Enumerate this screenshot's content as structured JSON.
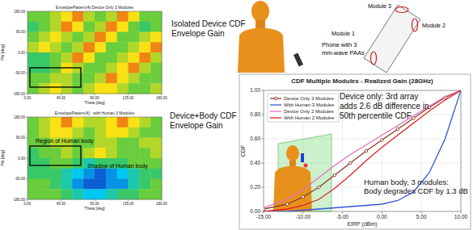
{
  "chart_data": [
    {
      "type": "heatmap",
      "title": "EnvelopePattern(4) Device Only 3 Modules",
      "x_label": "Theta [deg]",
      "y_label": "Phi [deg]",
      "xlim": [
        0,
        180
      ],
      "ylim": [
        -180,
        180
      ],
      "xticks": [
        {
          "value": 0,
          "label": "0.00"
        },
        {
          "value": 45,
          "label": "45.00"
        },
        {
          "value": 90,
          "label": "90.00"
        },
        {
          "value": 135,
          "label": "135.00"
        },
        {
          "value": 180,
          "label": "180.00"
        }
      ],
      "yticks": [
        {
          "value": -180,
          "label": "-180.00"
        },
        {
          "value": -90,
          "label": "-90.00"
        },
        {
          "value": 0,
          "label": "0.00"
        },
        {
          "value": 90,
          "label": "90.00"
        },
        {
          "value": 180,
          "label": "180.00"
        }
      ],
      "zlim": [
        0,
        10
      ],
      "cells": [
        [
          6,
          6,
          7,
          8,
          9,
          7,
          6,
          7,
          9,
          8,
          6,
          6
        ],
        [
          5,
          6,
          7,
          9,
          8,
          6,
          7,
          9,
          8,
          6,
          5,
          6
        ],
        [
          6,
          7,
          8,
          7,
          6,
          7,
          9,
          8,
          6,
          6,
          7,
          8
        ],
        [
          7,
          8,
          7,
          6,
          7,
          9,
          8,
          6,
          6,
          7,
          8,
          9
        ],
        [
          5,
          5,
          6,
          7,
          9,
          8,
          6,
          6,
          7,
          8,
          9,
          7
        ],
        [
          5,
          5,
          6,
          8,
          7,
          6,
          6,
          7,
          8,
          9,
          7,
          6
        ],
        [
          6,
          6,
          7,
          7,
          6,
          6,
          7,
          9,
          8,
          7,
          6,
          6
        ],
        [
          6,
          7,
          8,
          7,
          6,
          7,
          8,
          8,
          7,
          6,
          6,
          7
        ]
      ],
      "annotations": [
        [
          "Isolated Device CDF",
          "Envelope Gain"
        ]
      ]
    },
    {
      "type": "heatmap",
      "title": "EnvelopePattern(4) - with Human 3 Modules",
      "x_label": "Theta [deg]",
      "y_label": "Phi [deg]",
      "xlim": [
        0,
        180
      ],
      "ylim": [
        -180,
        180
      ],
      "xticks": [
        {
          "value": 0,
          "label": "0.00"
        },
        {
          "value": 45,
          "label": "45.00"
        },
        {
          "value": 90,
          "label": "90.00"
        },
        {
          "value": 135,
          "label": "135.00"
        },
        {
          "value": 180,
          "label": "180.00"
        }
      ],
      "yticks": [
        {
          "value": -180,
          "label": "-180.00"
        },
        {
          "value": -90,
          "label": "-90.00"
        },
        {
          "value": 0,
          "label": "0.00"
        },
        {
          "value": 90,
          "label": "90.00"
        },
        {
          "value": 180,
          "label": "180.00"
        }
      ],
      "zlim": [
        0,
        10
      ],
      "cells": [
        [
          6,
          7,
          8,
          9,
          8,
          7,
          7,
          8,
          9,
          8,
          7,
          6
        ],
        [
          6,
          7,
          8,
          8,
          7,
          6,
          7,
          8,
          8,
          7,
          6,
          6
        ],
        [
          6,
          6,
          7,
          7,
          6,
          6,
          7,
          7,
          6,
          6,
          7,
          7
        ],
        [
          5,
          6,
          6,
          7,
          6,
          7,
          8,
          7,
          6,
          6,
          6,
          7
        ],
        [
          5,
          5,
          6,
          6,
          5,
          4,
          5,
          5,
          5,
          6,
          6,
          6
        ],
        [
          5,
          5,
          5,
          4,
          3,
          2,
          1,
          2,
          3,
          4,
          5,
          5
        ],
        [
          6,
          6,
          5,
          4,
          2,
          1,
          1,
          2,
          2,
          4,
          5,
          6
        ],
        [
          6,
          6,
          6,
          5,
          4,
          3,
          3,
          4,
          5,
          5,
          6,
          6
        ]
      ],
      "annotations": [
        [
          "Device+Body CDF",
          "Envelope Gain"
        ],
        "Region of Human body",
        "Shadow of Human body"
      ]
    },
    {
      "type": "line",
      "title": "CDF Multiple Modules - Realized Gain (28GHz)",
      "x_label": "EIRP (dBm)",
      "y_label": "CDF",
      "x": [
        -15,
        -12,
        -10,
        -8,
        -6,
        -4,
        -2,
        0,
        2,
        4,
        6,
        8,
        10
      ],
      "xlim": [
        -15,
        10
      ],
      "xticks": [
        {
          "value": -15,
          "label": "-15.00"
        },
        {
          "value": -10,
          "label": "-10.00"
        },
        {
          "value": -5,
          "label": "-5.00"
        },
        {
          "value": 0,
          "label": "0.00"
        },
        {
          "value": 5,
          "label": "5.00"
        },
        {
          "value": 10,
          "label": "10.00"
        }
      ],
      "ylim": [
        0,
        1
      ],
      "yticks": [
        {
          "value": 0,
          "label": "0.00"
        },
        {
          "value": 0.2,
          "label": "0.20"
        },
        {
          "value": 0.4,
          "label": "0.40"
        },
        {
          "value": 0.6,
          "label": "0.60"
        },
        {
          "value": 0.8,
          "label": "0.80"
        },
        {
          "value": 1,
          "label": "1.00"
        }
      ],
      "grid": true,
      "legend": "upper left",
      "series": [
        {
          "name": "Device Only 3 Modules",
          "color": "#8b3a2a",
          "marker": "circle",
          "values": [
            0.02,
            0.06,
            0.12,
            0.2,
            0.3,
            0.4,
            0.5,
            0.59,
            0.68,
            0.77,
            0.86,
            0.94,
            1.0
          ]
        },
        {
          "name": "With Human 3 Modules",
          "color": "#3355dd",
          "marker": "none",
          "values": [
            0,
            0,
            0.01,
            0.02,
            0.03,
            0.04,
            0.05,
            0.06,
            0.09,
            0.16,
            0.32,
            0.6,
            1.0
          ]
        },
        {
          "name": "Device Only 2 Modules",
          "color": "#e070c0",
          "marker": "none",
          "values": [
            0.03,
            0.1,
            0.18,
            0.28,
            0.38,
            0.47,
            0.55,
            0.63,
            0.71,
            0.79,
            0.87,
            0.95,
            1.0
          ]
        },
        {
          "name": "With Human 2 Modules",
          "color": "#e02020",
          "marker": "none",
          "values": [
            0,
            0.02,
            0.05,
            0.1,
            0.19,
            0.3,
            0.42,
            0.53,
            0.63,
            0.73,
            0.83,
            0.92,
            1.0
          ]
        }
      ],
      "annotations": [
        [
          "Device only: 3rd array",
          "adds 2.6 dB difference in",
          "50th percentile CDF"
        ],
        [
          "Human body, 3 modules:",
          "Body degrades CDF by 1.3 dB"
        ]
      ]
    }
  ],
  "diagram": {
    "phone_label": [
      "Phone with 3",
      "mm-wave PAAs"
    ],
    "modules": [
      "Module 1",
      "Module 2",
      "Module 3"
    ]
  }
}
